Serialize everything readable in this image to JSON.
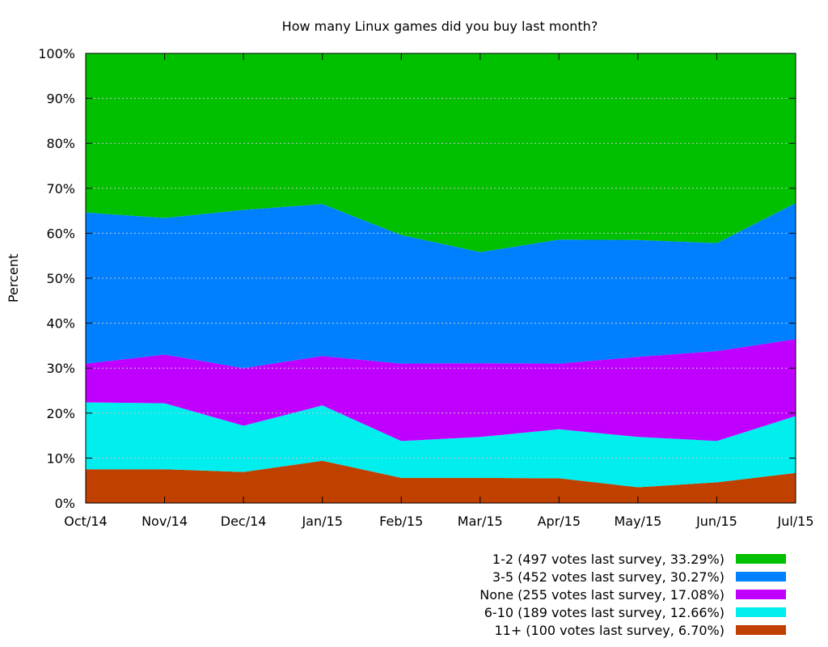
{
  "chart_data": {
    "type": "area",
    "stacked": true,
    "title": "How many Linux games did you buy last month?",
    "xlabel": "",
    "ylabel": "Percent",
    "categories": [
      "Oct/14",
      "Nov/14",
      "Dec/14",
      "Jan/15",
      "Feb/15",
      "Mar/15",
      "Apr/15",
      "May/15",
      "Jun/15",
      "Jul/15"
    ],
    "ylim": [
      0,
      100
    ],
    "yticks": [
      "0%",
      "10%",
      "20%",
      "30%",
      "40%",
      "50%",
      "60%",
      "70%",
      "80%",
      "90%",
      "100%"
    ],
    "ytick_values": [
      0,
      10,
      20,
      30,
      40,
      50,
      60,
      70,
      80,
      90,
      100
    ],
    "grid": true,
    "legend_position": "bottom-right",
    "series": [
      {
        "name": "11+ (100 votes last survey, 6.70%)",
        "color": "#c04000",
        "values": [
          7.5,
          7.5,
          6.9,
          9.4,
          5.6,
          5.6,
          5.5,
          3.5,
          4.6,
          6.7
        ]
      },
      {
        "name": "6-10 (189 votes last survey, 12.66%)",
        "color": "#00eeee",
        "values": [
          14.9,
          14.7,
          10.3,
          12.3,
          8.2,
          9.1,
          10.9,
          11.2,
          9.2,
          12.66
        ]
      },
      {
        "name": "None (255 votes last survey, 17.08%)",
        "color": "#c000ff",
        "values": [
          8.6,
          10.8,
          12.8,
          11.0,
          17.2,
          16.4,
          14.6,
          17.8,
          20.0,
          17.08
        ]
      },
      {
        "name": "3-5 (452 votes last survey, 30.27%)",
        "color": "#0080ff",
        "values": [
          33.6,
          30.4,
          35.2,
          33.8,
          28.6,
          24.7,
          27.6,
          26.0,
          24.0,
          30.27
        ]
      },
      {
        "name": "1-2 (497 votes last survey, 33.29%)",
        "color": "#00c000",
        "values": [
          35.4,
          36.6,
          34.8,
          33.5,
          40.4,
          44.2,
          41.4,
          41.5,
          42.2,
          33.29
        ]
      }
    ]
  }
}
